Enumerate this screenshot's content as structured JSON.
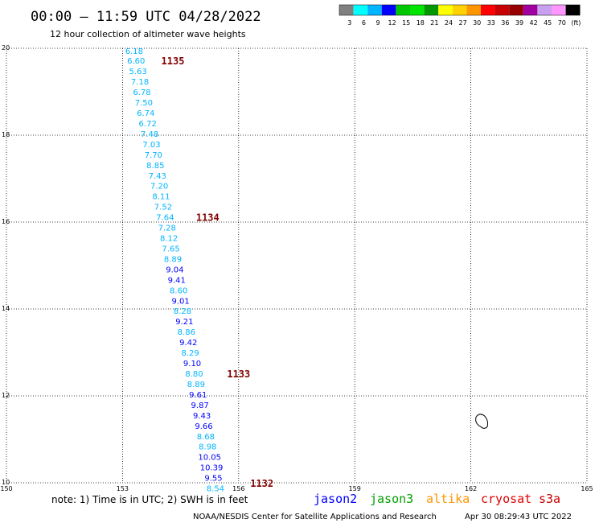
{
  "header": {
    "title": "00:00 — 11:59 UTC 04/28/2022",
    "subtitle": "12 hour collection of altimeter wave heights"
  },
  "colorbar": {
    "colors": [
      "#808080",
      "#00ffff",
      "#00b4ff",
      "#0000ff",
      "#00c800",
      "#00e600",
      "#009600",
      "#ffff00",
      "#ffd200",
      "#ff9600",
      "#ff0000",
      "#c80000",
      "#960000",
      "#a000a0",
      "#c8a0f0",
      "#ff96ff",
      "#000000"
    ],
    "labels": [
      "3",
      "6",
      "9",
      "12",
      "15",
      "18",
      "21",
      "24",
      "27",
      "30",
      "33",
      "36",
      "39",
      "42",
      "45",
      "70",
      "(ft)"
    ]
  },
  "chart_data": {
    "type": "scatter",
    "xlim": [
      150,
      165
    ],
    "ylim": [
      10,
      20
    ],
    "x_ticks": [
      "150",
      "153",
      "156",
      "159",
      "162",
      "165"
    ],
    "y_ticks": [
      "10",
      "12",
      "14",
      "16",
      "18",
      "20"
    ],
    "grid": true,
    "points": [
      {
        "x": 153.3,
        "y": 19.93,
        "v": "6.18",
        "c": "#00b4ff"
      },
      {
        "x": 153.35,
        "y": 19.7,
        "v": "6.60",
        "c": "#00b4ff"
      },
      {
        "x": 153.4,
        "y": 19.46,
        "v": "5.63",
        "c": "#00b4ff"
      },
      {
        "x": 153.45,
        "y": 19.22,
        "v": "7.18",
        "c": "#00b4ff"
      },
      {
        "x": 153.5,
        "y": 18.98,
        "v": "6.78",
        "c": "#00b4ff"
      },
      {
        "x": 153.55,
        "y": 18.74,
        "v": "7.50",
        "c": "#00b4ff"
      },
      {
        "x": 153.6,
        "y": 18.5,
        "v": "6.74",
        "c": "#00b4ff"
      },
      {
        "x": 153.65,
        "y": 18.26,
        "v": "6.72",
        "c": "#00b4ff"
      },
      {
        "x": 153.7,
        "y": 18.02,
        "v": "7.48",
        "c": "#00b4ff"
      },
      {
        "x": 153.75,
        "y": 17.78,
        "v": "7.03",
        "c": "#00b4ff"
      },
      {
        "x": 153.8,
        "y": 17.54,
        "v": "7.70",
        "c": "#00b4ff"
      },
      {
        "x": 153.85,
        "y": 17.3,
        "v": "8.85",
        "c": "#00b4ff"
      },
      {
        "x": 153.9,
        "y": 17.06,
        "v": "7.43",
        "c": "#00b4ff"
      },
      {
        "x": 153.95,
        "y": 16.82,
        "v": "7.20",
        "c": "#00b4ff"
      },
      {
        "x": 154.0,
        "y": 16.58,
        "v": "8.11",
        "c": "#00b4ff"
      },
      {
        "x": 154.05,
        "y": 16.34,
        "v": "7.52",
        "c": "#00b4ff"
      },
      {
        "x": 154.1,
        "y": 16.1,
        "v": "7.64",
        "c": "#00b4ff"
      },
      {
        "x": 154.15,
        "y": 15.86,
        "v": "7.28",
        "c": "#00b4ff"
      },
      {
        "x": 154.2,
        "y": 15.62,
        "v": "8.12",
        "c": "#00b4ff"
      },
      {
        "x": 154.25,
        "y": 15.38,
        "v": "7.65",
        "c": "#00b4ff"
      },
      {
        "x": 154.3,
        "y": 15.14,
        "v": "8.89",
        "c": "#00b4ff"
      },
      {
        "x": 154.35,
        "y": 14.9,
        "v": "9.04",
        "c": "#0000ff"
      },
      {
        "x": 154.4,
        "y": 14.66,
        "v": "9.41",
        "c": "#0000ff"
      },
      {
        "x": 154.45,
        "y": 14.42,
        "v": "8.60",
        "c": "#00b4ff"
      },
      {
        "x": 154.5,
        "y": 14.18,
        "v": "9.01",
        "c": "#0000ff"
      },
      {
        "x": 154.55,
        "y": 13.94,
        "v": "8.28",
        "c": "#00b4ff"
      },
      {
        "x": 154.6,
        "y": 13.7,
        "v": "9.21",
        "c": "#0000ff"
      },
      {
        "x": 154.65,
        "y": 13.46,
        "v": "8.86",
        "c": "#00b4ff"
      },
      {
        "x": 154.7,
        "y": 13.22,
        "v": "9.42",
        "c": "#0000ff"
      },
      {
        "x": 154.75,
        "y": 12.98,
        "v": "8.29",
        "c": "#00b4ff"
      },
      {
        "x": 154.8,
        "y": 12.74,
        "v": "9.10",
        "c": "#0000ff"
      },
      {
        "x": 154.85,
        "y": 12.5,
        "v": "8.80",
        "c": "#00b4ff"
      },
      {
        "x": 154.9,
        "y": 12.26,
        "v": "8.89",
        "c": "#00b4ff"
      },
      {
        "x": 154.95,
        "y": 12.02,
        "v": "9.61",
        "c": "#0000ff"
      },
      {
        "x": 155.0,
        "y": 11.78,
        "v": "9.87",
        "c": "#0000ff"
      },
      {
        "x": 155.05,
        "y": 11.54,
        "v": "9.43",
        "c": "#0000ff"
      },
      {
        "x": 155.1,
        "y": 11.3,
        "v": "9.66",
        "c": "#0000ff"
      },
      {
        "x": 155.15,
        "y": 11.06,
        "v": "8.68",
        "c": "#00b4ff"
      },
      {
        "x": 155.2,
        "y": 10.82,
        "v": "8.98",
        "c": "#00b4ff"
      },
      {
        "x": 155.25,
        "y": 10.58,
        "v": "10.05",
        "c": "#0000ff"
      },
      {
        "x": 155.3,
        "y": 10.34,
        "v": "10.39",
        "c": "#0000ff"
      },
      {
        "x": 155.35,
        "y": 10.1,
        "v": "9.55",
        "c": "#0000ff"
      },
      {
        "x": 155.4,
        "y": 9.86,
        "v": "8.54",
        "c": "#00b4ff"
      }
    ],
    "orbits": [
      {
        "label": "1135",
        "x": 154.0,
        "y": 19.7
      },
      {
        "label": "1134",
        "x": 154.9,
        "y": 16.1
      },
      {
        "label": "1133",
        "x": 155.7,
        "y": 12.5
      },
      {
        "label": "1132",
        "x": 156.3,
        "y": 9.98
      }
    ]
  },
  "land": {
    "name": "island-outline",
    "x": 162.3,
    "y": 11.4
  },
  "note": "note:  1) Time is in UTC; 2) SWH is in feet",
  "satellites": [
    {
      "name": "jason2",
      "color": "#0000ff"
    },
    {
      "name": "jason3",
      "color": "#00a000"
    },
    {
      "name": "altika",
      "color": "#ff9600"
    },
    {
      "name": "cryosat",
      "color": "#e00000"
    },
    {
      "name": "s3a",
      "color": "#c80000"
    }
  ],
  "footer": {
    "credit": "NOAA/NESDIS Center for Satellite Applications and Research",
    "timestamp": "Apr 30 08:29:43 UTC 2022"
  }
}
